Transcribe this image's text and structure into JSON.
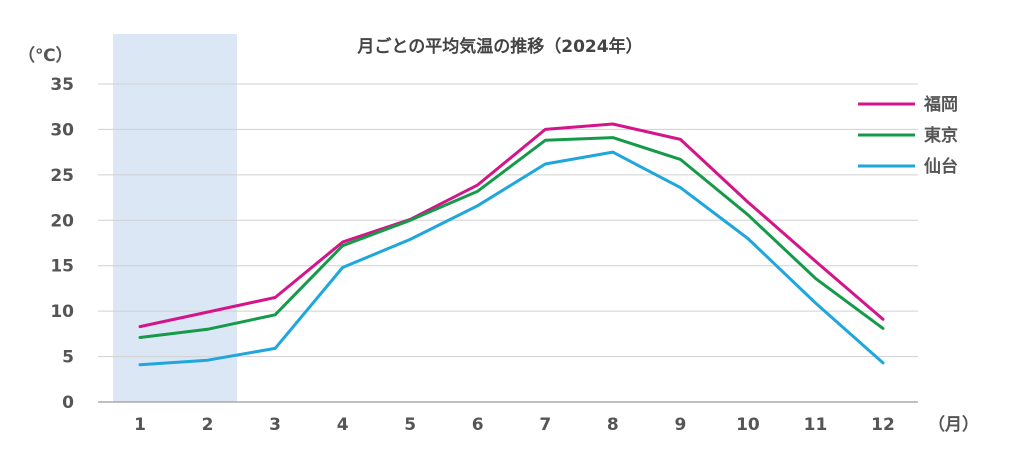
{
  "chart_data": {
    "type": "line",
    "title": "月ごとの平均気温の推移（2024年）",
    "y_unit_label": "（℃）",
    "x_unit_label": "（月）",
    "categories": [
      "1",
      "2",
      "3",
      "4",
      "5",
      "6",
      "7",
      "8",
      "9",
      "10",
      "11",
      "12"
    ],
    "ylim": [
      0,
      35
    ],
    "y_ticks": [
      0,
      5,
      10,
      15,
      20,
      25,
      30,
      35
    ],
    "grid": true,
    "legend_position": "top-right",
    "highlight_band": {
      "from_category": "1",
      "to_category": "2",
      "color": "#dce7f5"
    },
    "series": [
      {
        "name": "福岡",
        "color": "#d4158a",
        "values": [
          8.3,
          9.9,
          11.5,
          17.6,
          20.1,
          23.9,
          30.0,
          30.6,
          28.9,
          22.0,
          15.5,
          9.1
        ]
      },
      {
        "name": "東京",
        "color": "#159a4a",
        "values": [
          7.1,
          8.0,
          9.6,
          17.2,
          20.0,
          23.2,
          28.8,
          29.1,
          26.7,
          20.6,
          13.6,
          8.1
        ]
      },
      {
        "name": "仙台",
        "color": "#1ea6dd",
        "values": [
          4.1,
          4.6,
          5.9,
          14.8,
          17.9,
          21.6,
          26.2,
          27.5,
          23.6,
          18.0,
          10.9,
          4.3
        ]
      }
    ]
  }
}
